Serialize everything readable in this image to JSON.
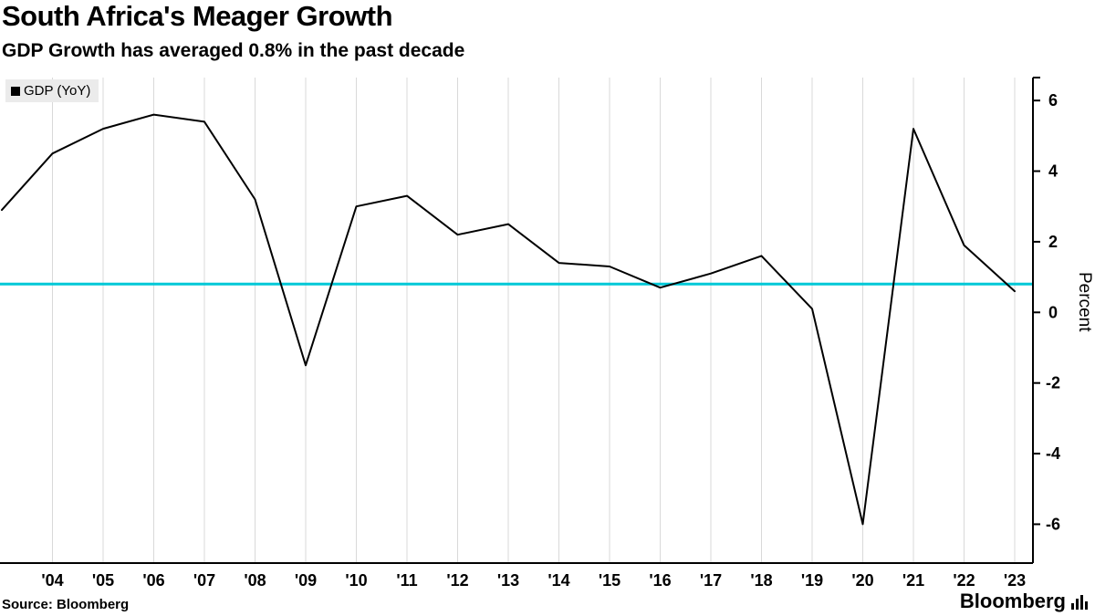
{
  "header": {
    "title": "South Africa's Meager Growth",
    "subtitle": "GDP Growth has averaged 0.8% in the past decade"
  },
  "legend": {
    "label": "GDP (YoY)",
    "marker_color": "#000000"
  },
  "chart_data": {
    "type": "line",
    "title": "South Africa's Meager Growth",
    "subtitle": "GDP Growth has averaged 0.8% in the past decade",
    "x": [
      2003,
      2004,
      2005,
      2006,
      2007,
      2008,
      2009,
      2010,
      2011,
      2012,
      2013,
      2014,
      2015,
      2016,
      2017,
      2018,
      2019,
      2020,
      2021,
      2022,
      2023
    ],
    "x_tick_labels": [
      "'04",
      "'05",
      "'06",
      "'07",
      "'08",
      "'09",
      "'10",
      "'11",
      "'12",
      "'13",
      "'14",
      "'15",
      "'16",
      "'17",
      "'18",
      "'19",
      "'20",
      "'21",
      "'22",
      "'23"
    ],
    "series": [
      {
        "name": "GDP (YoY)",
        "color": "#000000",
        "values": [
          2.9,
          4.5,
          5.2,
          5.6,
          5.4,
          3.2,
          -1.5,
          3.0,
          3.3,
          2.2,
          2.5,
          1.4,
          1.3,
          0.7,
          1.1,
          1.6,
          0.1,
          -6.0,
          5.2,
          1.9,
          0.6
        ]
      }
    ],
    "reference_line": {
      "value": 0.8,
      "color": "#00c8d7"
    },
    "xlabel": "",
    "ylabel": "Percent",
    "yticks": [
      6,
      4,
      2,
      0,
      -2,
      -4,
      -6
    ],
    "ylim": [
      -7.1,
      6.65
    ],
    "grid": "vertical",
    "legend_position": "top-left",
    "y_axis_side": "right"
  },
  "footer": {
    "source": "Source:  Bloomberg",
    "brand": "Bloomberg"
  }
}
